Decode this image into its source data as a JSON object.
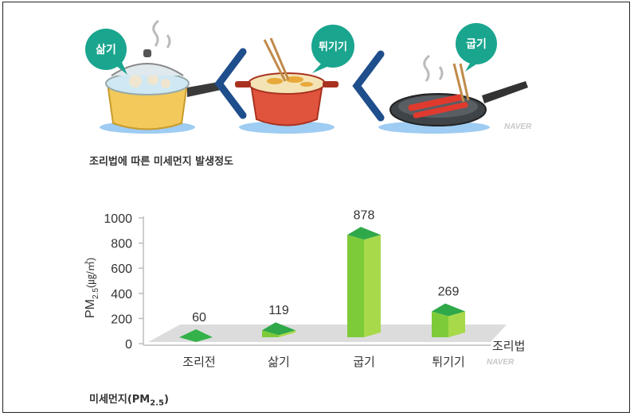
{
  "illustration": {
    "labels": [
      "삶기",
      "튀기기",
      "굽기"
    ],
    "watermark": "NAVER"
  },
  "caption_top": "조리법에 따른 미세먼지 발생정도",
  "caption_bottom": "미세먼지(PM",
  "caption_bottom_sub": "2.5",
  "caption_bottom_end": ")",
  "chart_data": {
    "type": "bar",
    "categories": [
      "조리전",
      "삶기",
      "굽기",
      "튀기기"
    ],
    "values": [
      60,
      119,
      878,
      269
    ],
    "xlabel": "조리법",
    "ylabel": "PM",
    "ylabel_sub": "2.5",
    "ylabel_unit": "(㎍/㎥)",
    "ylim": [
      0,
      1000
    ],
    "yticks": [
      "0",
      "200",
      "400",
      "600",
      "800",
      "1000"
    ],
    "watermark": "NAVER"
  }
}
